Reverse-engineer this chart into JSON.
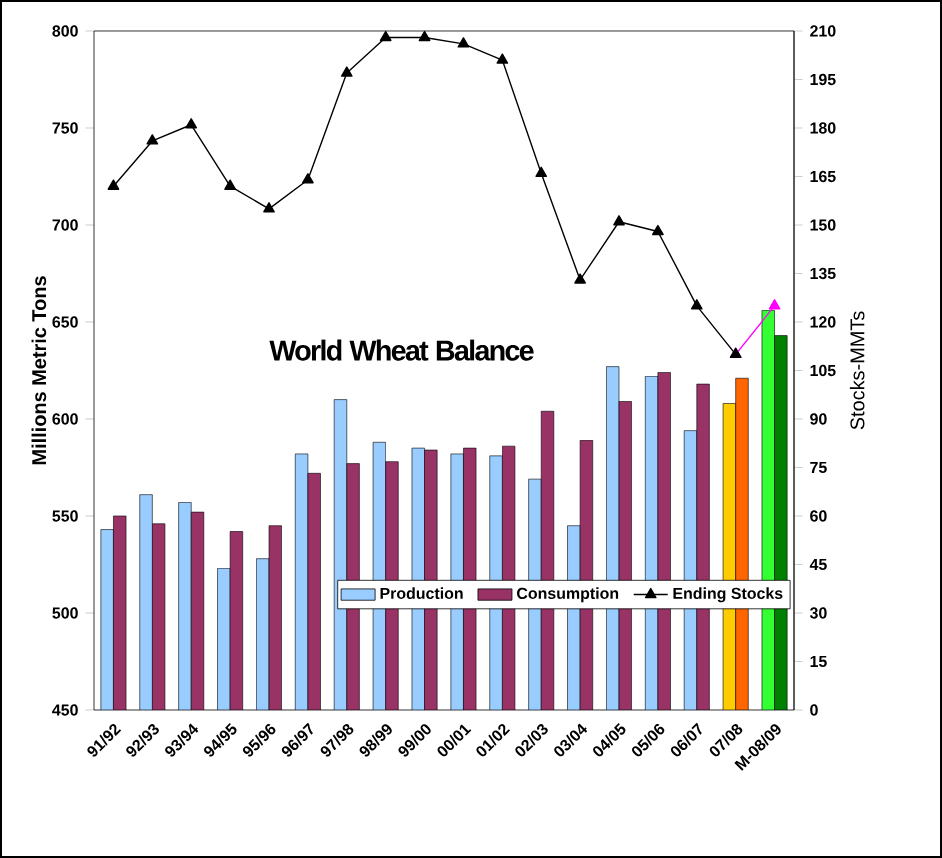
{
  "chart_data": {
    "type": "bar",
    "title": "World Wheat Balance",
    "ylabel": "Millions Metric Tons",
    "y2label": "Stocks-MMTs",
    "categories": [
      "91/92",
      "92/93",
      "93/94",
      "94/95",
      "95/96",
      "96/97",
      "97/98",
      "98/99",
      "99/00",
      "00/01",
      "01/02",
      "02/03",
      "03/04",
      "04/05",
      "05/06",
      "06/07",
      "07/08",
      "M-08/09"
    ],
    "ylim": [
      450,
      800
    ],
    "yticks": [
      450,
      500,
      550,
      600,
      650,
      700,
      750,
      800
    ],
    "y2lim": [
      0,
      210
    ],
    "y2ticks": [
      0,
      15,
      30,
      45,
      60,
      75,
      90,
      105,
      120,
      135,
      150,
      165,
      180,
      195,
      210
    ],
    "legend": "bottom right",
    "grid": false,
    "series": [
      {
        "name": "Production",
        "color": "#99ccff",
        "colors": [
          "#99ccff",
          "#99ccff",
          "#99ccff",
          "#99ccff",
          "#99ccff",
          "#99ccff",
          "#99ccff",
          "#99ccff",
          "#99ccff",
          "#99ccff",
          "#99ccff",
          "#99ccff",
          "#99ccff",
          "#99ccff",
          "#99ccff",
          "#99ccff",
          "#ffcc00",
          "#33ff33"
        ],
        "values": [
          543,
          561,
          557,
          523,
          528,
          582,
          610,
          588,
          585,
          582,
          581,
          569,
          545,
          627,
          622,
          594,
          608,
          656
        ]
      },
      {
        "name": "Consumption",
        "color": "#993366",
        "colors": [
          "#993366",
          "#993366",
          "#993366",
          "#993366",
          "#993366",
          "#993366",
          "#993366",
          "#993366",
          "#993366",
          "#993366",
          "#993366",
          "#993366",
          "#993366",
          "#993366",
          "#993366",
          "#993366",
          "#ff6600",
          "#008000"
        ],
        "values": [
          550,
          546,
          552,
          542,
          545,
          572,
          577,
          578,
          584,
          585,
          586,
          604,
          589,
          609,
          624,
          618,
          621,
          643
        ]
      },
      {
        "name": "Ending Stocks",
        "type": "line",
        "axis": "y2",
        "color": "#000000",
        "marker": "triangle",
        "values": [
          162,
          176,
          181,
          162,
          155,
          164,
          197,
          208,
          208,
          206,
          201,
          166,
          133,
          151,
          148,
          125,
          110,
          null
        ]
      },
      {
        "type": "line",
        "axis": "y2",
        "color": "#ff00ff",
        "marker": "triangle",
        "values": [
          null,
          null,
          null,
          null,
          null,
          null,
          null,
          null,
          null,
          null,
          null,
          null,
          null,
          null,
          null,
          null,
          110,
          125
        ]
      }
    ]
  }
}
